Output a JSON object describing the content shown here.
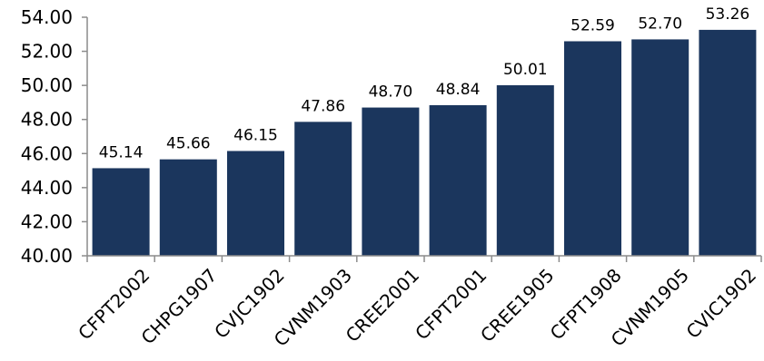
{
  "chart_data": {
    "type": "bar",
    "title": "",
    "xlabel": "",
    "ylabel": "",
    "categories": [
      "CFPT2002",
      "CHPG1907",
      "CVJC1902",
      "CVNM1903",
      "CREE2001",
      "CFPT2001",
      "CREE1905",
      "CFPT1908",
      "CVNM1905",
      "CVIC1902"
    ],
    "values": [
      45.14,
      45.66,
      46.15,
      47.86,
      48.7,
      48.84,
      50.01,
      52.59,
      52.7,
      53.26
    ],
    "value_labels": [
      "45.14",
      "45.66",
      "46.15",
      "47.86",
      "48.70",
      "48.84",
      "50.01",
      "52.59",
      "52.70",
      "53.26"
    ],
    "ylim": [
      40,
      54
    ],
    "yticks": [
      "40.00",
      "42.00",
      "44.00",
      "46.00",
      "48.00",
      "50.00",
      "52.00",
      "54.00"
    ],
    "grid": false,
    "legend": "none",
    "bar_color": "#1b365d",
    "axis_color": "#8c8c8c"
  }
}
